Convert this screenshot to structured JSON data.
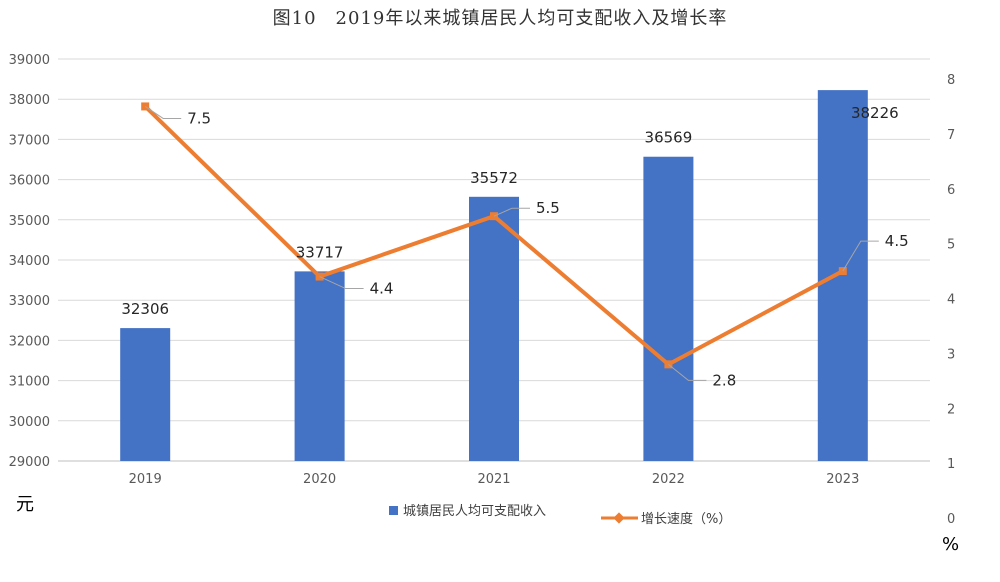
{
  "chart_data": {
    "type": "bar",
    "title": "图10　2019年以来城镇居民人均可支配收入及增长率",
    "categories": [
      "2019",
      "2020",
      "2021",
      "2022",
      "2023"
    ],
    "series": [
      {
        "name": "城镇居民人均可支配收入",
        "type": "bar",
        "axis": "left",
        "color": "#4472C4",
        "values": [
          32306,
          33717,
          35572,
          36569,
          38226
        ],
        "labels": [
          "32306",
          "33717",
          "35572",
          "36569",
          "38226"
        ]
      },
      {
        "name": "增长速度（%）",
        "type": "line",
        "axis": "right",
        "color": "#ED7D31",
        "values": [
          7.5,
          4.4,
          5.5,
          2.8,
          4.5
        ],
        "labels": [
          "7.5",
          "4.4",
          "5.5",
          "2.8",
          "4.5"
        ]
      }
    ],
    "y_left": {
      "unit": "元",
      "ylim": [
        29000,
        39000
      ],
      "ticks": [
        "29000",
        "30000",
        "31000",
        "32000",
        "33000",
        "34000",
        "35000",
        "36000",
        "37000",
        "38000",
        "39000"
      ]
    },
    "y_right": {
      "unit": "%",
      "ylim": [
        0,
        8
      ],
      "ticks": [
        "0",
        "1",
        "2",
        "3",
        "4",
        "5",
        "6",
        "7",
        "8"
      ]
    },
    "grid": true,
    "legend": "bottom"
  }
}
